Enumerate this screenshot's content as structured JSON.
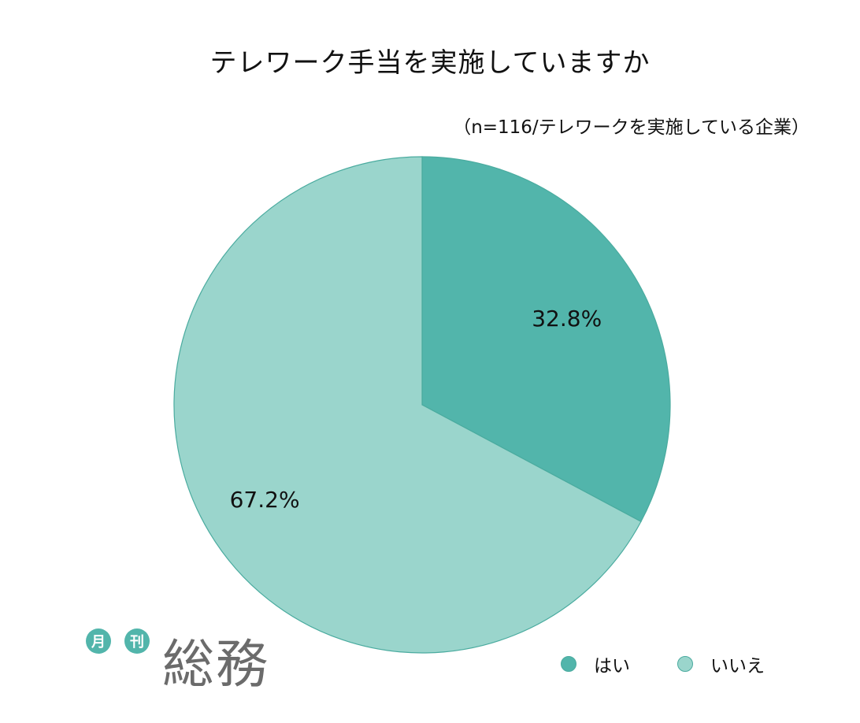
{
  "chart_data": {
    "type": "pie",
    "title": "テレワーク手当を実施していますか",
    "subtitle": "（n=116/テレワークを実施している企業）",
    "categories": [
      "はい",
      "いいえ"
    ],
    "values": [
      32.8,
      67.2
    ],
    "data_labels": [
      "32.8%",
      "67.2%"
    ],
    "colors": [
      "#52b5ab",
      "#9ad5cc"
    ],
    "stroke_color": "#4aab9f",
    "legend_position": "bottom-right"
  },
  "logo": {
    "badge_1": "月",
    "badge_2": "刊",
    "wordmark": "総務",
    "badge_color": "#52b5ab",
    "wordmark_color": "#6b6b6b"
  }
}
